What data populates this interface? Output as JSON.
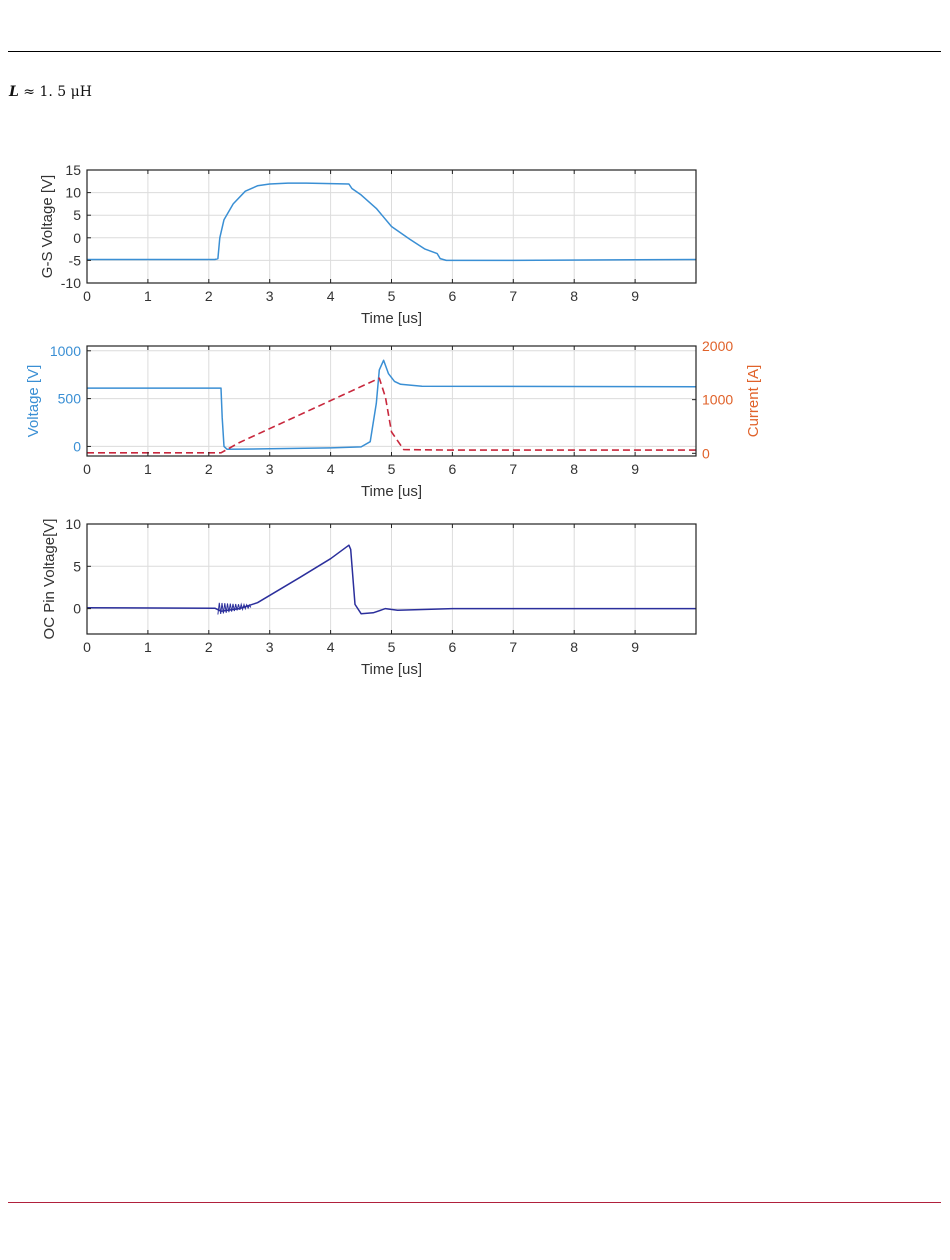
{
  "caption": {
    "symbol": "L",
    "relation": "≈",
    "value": "1. 5",
    "unit": "μH"
  },
  "colors": {
    "blue": "#3a8fd4",
    "dark_blue": "#2b2f9c",
    "orange": "#e0622a",
    "red_dashed": "#c8283d",
    "rule_bottom": "#b0203c"
  },
  "chart_data": [
    {
      "type": "line",
      "title": "",
      "xlabel": "Time [us]",
      "ylabel": "G-S Voltage [V]",
      "xlim": [
        0,
        10
      ],
      "ylim": [
        -10,
        15
      ],
      "xticks": [
        0,
        1,
        2,
        3,
        4,
        5,
        6,
        7,
        8,
        9
      ],
      "yticks": [
        -10,
        -5,
        0,
        5,
        10,
        15
      ],
      "grid": true,
      "series": [
        {
          "color": "#3a8fd4",
          "dash": false,
          "points": [
            [
              0,
              -4.8
            ],
            [
              2.1,
              -4.8
            ],
            [
              2.15,
              -4.6
            ],
            [
              2.18,
              0
            ],
            [
              2.25,
              4
            ],
            [
              2.4,
              7.5
            ],
            [
              2.6,
              10.3
            ],
            [
              2.8,
              11.5
            ],
            [
              3.0,
              11.9
            ],
            [
              3.3,
              12.1
            ],
            [
              3.6,
              12.1
            ],
            [
              4.0,
              12.0
            ],
            [
              4.3,
              11.9
            ],
            [
              4.35,
              10.9
            ],
            [
              4.5,
              9.5
            ],
            [
              4.75,
              6.5
            ],
            [
              5.0,
              2.5
            ],
            [
              5.3,
              -0.3
            ],
            [
              5.55,
              -2.5
            ],
            [
              5.75,
              -3.5
            ],
            [
              5.8,
              -4.6
            ],
            [
              5.9,
              -5.0
            ],
            [
              7.0,
              -5.0
            ],
            [
              10.0,
              -4.8
            ]
          ]
        }
      ]
    },
    {
      "type": "line",
      "title": "",
      "xlabel": "Time [us]",
      "ylabel": "Voltage [V]",
      "ylabel_right": "Current [A]",
      "xlim": [
        0,
        10
      ],
      "ylim": [
        -100,
        1050
      ],
      "ylim_right": [
        -50,
        2000
      ],
      "xticks": [
        0,
        1,
        2,
        3,
        4,
        5,
        6,
        7,
        8,
        9
      ],
      "yticks": [
        0,
        500,
        1000
      ],
      "yticks_right": [
        0,
        1000,
        2000
      ],
      "grid": true,
      "series": [
        {
          "axis": "left",
          "color": "#3a8fd4",
          "dash": false,
          "points": [
            [
              0,
              610
            ],
            [
              2.2,
              610
            ],
            [
              2.22,
              300
            ],
            [
              2.25,
              0
            ],
            [
              2.3,
              -30
            ],
            [
              3.0,
              -25
            ],
            [
              4.0,
              -15
            ],
            [
              4.5,
              -5
            ],
            [
              4.65,
              50
            ],
            [
              4.75,
              450
            ],
            [
              4.8,
              800
            ],
            [
              4.87,
              900
            ],
            [
              4.95,
              760
            ],
            [
              5.05,
              680
            ],
            [
              5.15,
              650
            ],
            [
              5.5,
              630
            ],
            [
              10.0,
              625
            ]
          ]
        },
        {
          "axis": "right",
          "color": "#c8283d",
          "dash": true,
          "points": [
            [
              0,
              10
            ],
            [
              2.2,
              10
            ],
            [
              2.5,
              200
            ],
            [
              4.8,
              1400
            ],
            [
              4.9,
              1050
            ],
            [
              5.0,
              400
            ],
            [
              5.2,
              70
            ],
            [
              6.0,
              60
            ],
            [
              10.0,
              60
            ]
          ]
        }
      ]
    },
    {
      "type": "line",
      "title": "",
      "xlabel": "Time [us]",
      "ylabel": "OC Pin Voltage[V]",
      "xlim": [
        0,
        10
      ],
      "ylim": [
        -3,
        10
      ],
      "xticks": [
        0,
        1,
        2,
        3,
        4,
        5,
        6,
        7,
        8,
        9
      ],
      "yticks": [
        0,
        5,
        10
      ],
      "grid": true,
      "series": [
        {
          "color": "#2b2f9c",
          "dash": false,
          "points": [
            [
              0,
              0.1
            ],
            [
              2.1,
              0.05
            ],
            [
              2.2,
              -0.3
            ],
            [
              2.5,
              0
            ],
            [
              2.8,
              0.7
            ],
            [
              3.5,
              3.7
            ],
            [
              4.0,
              5.9
            ],
            [
              4.3,
              7.5
            ],
            [
              4.33,
              7.0
            ],
            [
              4.4,
              0.5
            ],
            [
              4.5,
              -0.6
            ],
            [
              4.7,
              -0.5
            ],
            [
              4.9,
              0.0
            ],
            [
              5.1,
              -0.2
            ],
            [
              6.0,
              0.0
            ],
            [
              10.0,
              0.0
            ]
          ]
        }
      ]
    }
  ]
}
